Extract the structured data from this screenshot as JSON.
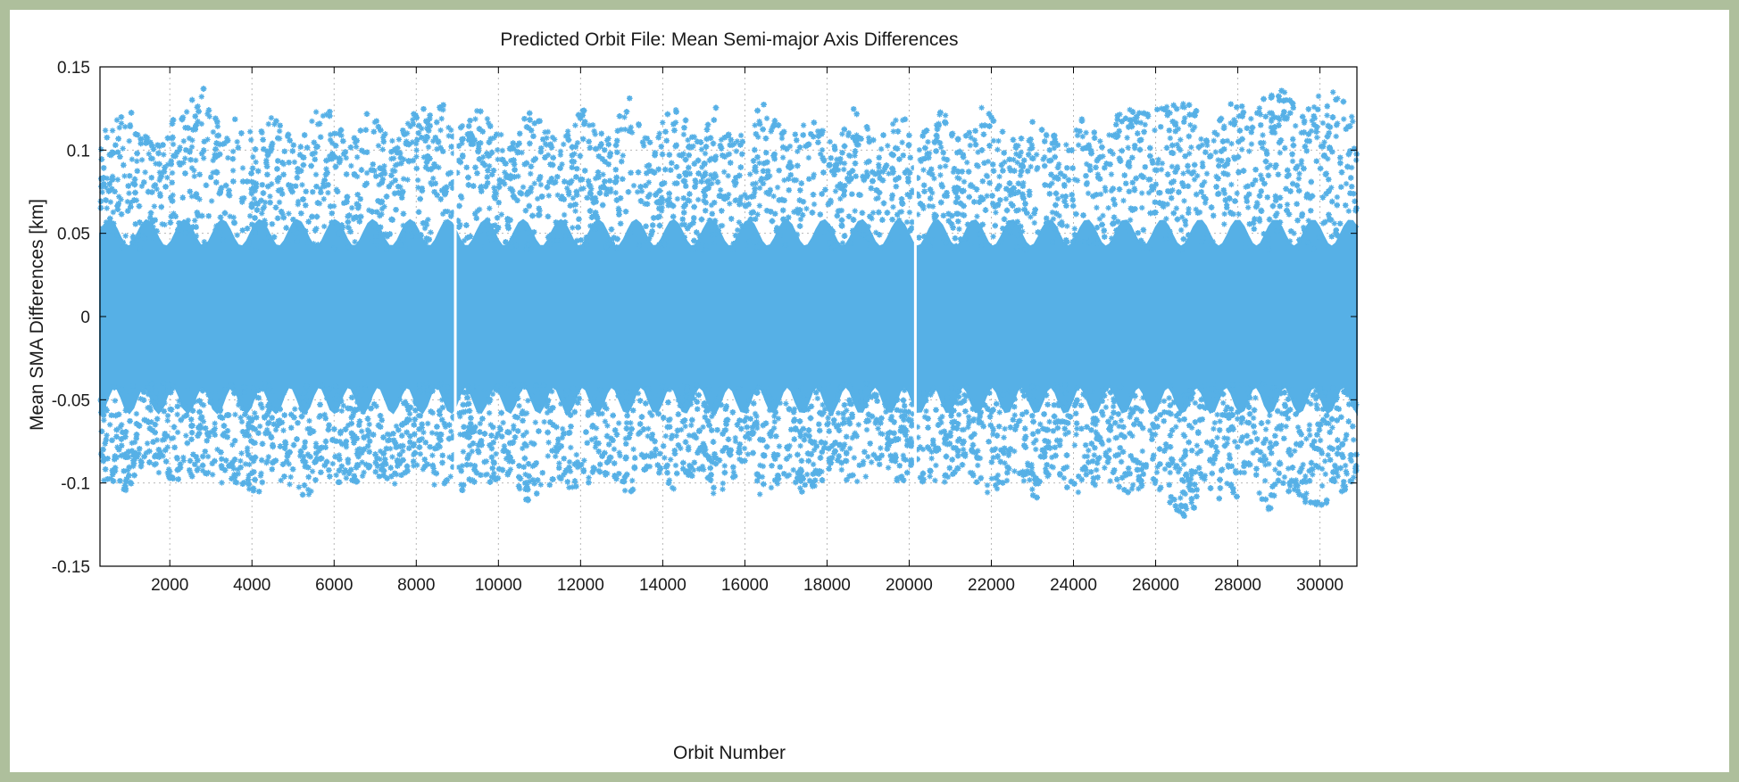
{
  "chart_data": {
    "type": "scatter",
    "title": "Predicted Orbit File: Mean Semi-major Axis Differences",
    "xlabel": "Orbit Number",
    "ylabel": "Mean SMA Differences [km]",
    "xlim": [
      300,
      30900
    ],
    "ylim": [
      -0.15,
      0.15
    ],
    "xticks": [
      2000,
      4000,
      6000,
      8000,
      10000,
      12000,
      14000,
      16000,
      18000,
      20000,
      22000,
      24000,
      26000,
      28000,
      30000
    ],
    "xtick_labels": [
      "2000",
      "4000",
      "6000",
      "8000",
      "10000",
      "12000",
      "14000",
      "16000",
      "18000",
      "20000",
      "22000",
      "24000",
      "26000",
      "28000",
      "30000"
    ],
    "yticks": [
      -0.15,
      -0.1,
      -0.05,
      0,
      0.05,
      0.1,
      0.15
    ],
    "ytick_labels": [
      "-0.15",
      "-0.1",
      "-0.05",
      "0",
      "0.05",
      "0.1",
      "0.15"
    ],
    "grid": true,
    "marker": "asterisk",
    "color": "#56b0e6",
    "series": [
      {
        "dense_band": [
          -0.05,
          0.05
        ],
        "envelope": {
          "orbit_number": [
            300,
            1000,
            1500,
            2000,
            2900,
            3300,
            3600,
            4100,
            4500,
            5200,
            5700,
            6400,
            6800,
            7500,
            7900,
            8700,
            8950,
            9100,
            9500,
            10300,
            10700,
            11500,
            12000,
            12700,
            13200,
            13700,
            14300,
            14900,
            15300,
            16000,
            16400,
            17100,
            17500,
            18200,
            18600,
            19300,
            19700,
            20100,
            20250,
            20800,
            21300,
            21800,
            22600,
            23100,
            23600,
            24000,
            24800,
            25200,
            25800,
            26300,
            26800,
            27300,
            27800,
            28300,
            28800,
            29100,
            29500,
            30000,
            30400,
            30800
          ],
          "y_max": [
            0.11,
            0.126,
            0.106,
            0.116,
            0.14,
            0.105,
            0.12,
            0.108,
            0.122,
            0.105,
            0.13,
            0.105,
            0.128,
            0.106,
            0.124,
            0.128,
            0.11,
            0.115,
            0.126,
            0.103,
            0.126,
            0.105,
            0.128,
            0.108,
            0.133,
            0.106,
            0.13,
            0.104,
            0.128,
            0.106,
            0.13,
            0.108,
            0.124,
            0.105,
            0.126,
            0.106,
            0.126,
            0.112,
            0.108,
            0.125,
            0.105,
            0.13,
            0.105,
            0.122,
            0.108,
            0.13,
            0.106,
            0.128,
            0.122,
            0.133,
            0.134,
            0.11,
            0.13,
            0.125,
            0.135,
            0.14,
            0.12,
            0.137,
            0.137,
            0.12
          ],
          "y_min": [
            -0.1,
            -0.105,
            -0.09,
            -0.1,
            -0.095,
            -0.103,
            -0.1,
            -0.108,
            -0.095,
            -0.113,
            -0.097,
            -0.103,
            -0.096,
            -0.102,
            -0.09,
            -0.108,
            -0.09,
            -0.105,
            -0.105,
            -0.095,
            -0.113,
            -0.097,
            -0.11,
            -0.095,
            -0.11,
            -0.09,
            -0.108,
            -0.095,
            -0.11,
            -0.09,
            -0.11,
            -0.095,
            -0.11,
            -0.09,
            -0.105,
            -0.095,
            -0.105,
            -0.09,
            -0.1,
            -0.105,
            -0.09,
            -0.11,
            -0.095,
            -0.11,
            -0.095,
            -0.11,
            -0.097,
            -0.11,
            -0.1,
            -0.112,
            -0.123,
            -0.105,
            -0.115,
            -0.1,
            -0.118,
            -0.103,
            -0.11,
            -0.116,
            -0.11,
            -0.1
          ]
        },
        "gaps_near_orbit_number": [
          8950,
          20150
        ]
      }
    ]
  }
}
